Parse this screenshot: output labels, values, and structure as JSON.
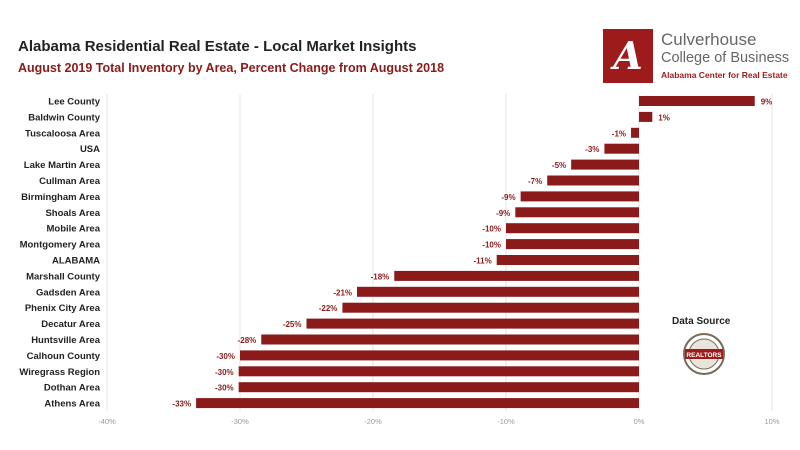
{
  "title": "Alabama Residential Real Estate - Local Market Insights",
  "subtitle": "August 2019 Total Inventory by Area, Percent Change from August 2018",
  "logo": {
    "letter": "A",
    "line1": "Culverhouse",
    "line2": "College of Business",
    "line3": "Alabama Center for Real Estate"
  },
  "data_source_label": "Data Source",
  "seal_text": "REALTORS",
  "colors": {
    "bar": "#8b1a1a",
    "label": "#8b1a1a",
    "grid": "#e6e6e6",
    "axis": "#999999"
  },
  "chart_data": {
    "type": "bar",
    "orientation": "horizontal",
    "title": "Alabama Residential Real Estate - Local Market Insights",
    "subtitle": "August 2019 Total Inventory by Area, Percent Change from August 2018",
    "categories": [
      "Lee County",
      "Baldwin County",
      "Tuscaloosa Area",
      "USA",
      "Lake Martin Area",
      "Cullman Area",
      "Birmingham Area",
      "Shoals Area",
      "Mobile Area",
      "Montgomery Area",
      "ALABAMA",
      "Marshall County",
      "Gadsden Area",
      "Phenix City Area",
      "Decatur Area",
      "Huntsville Area",
      "Calhoun County",
      "Wiregrass Region",
      "Dothan Area",
      "Athens Area"
    ],
    "values": [
      8.7,
      1.0,
      -0.6,
      -2.6,
      -5.1,
      -6.9,
      -8.9,
      -9.3,
      -10.0,
      -10.0,
      -10.7,
      -18.4,
      -21.2,
      -22.3,
      -25.0,
      -28.4,
      -30.0,
      -30.1,
      -30.1,
      -33.3
    ],
    "data_labels": [
      "9%",
      "1%",
      "-1%",
      "-3%",
      "-5%",
      "-7%",
      "-9%",
      "-9%",
      "-10%",
      "-10%",
      "-11%",
      "-18%",
      "-21%",
      "-22%",
      "-25%",
      "-28%",
      "-30%",
      "-30%",
      "-30%",
      "-33%"
    ],
    "xlim": [
      -40,
      10
    ],
    "x_ticks": [
      -40,
      -30,
      -20,
      -10,
      0,
      10
    ],
    "x_tick_labels": [
      "-40%",
      "-30%",
      "-20%",
      "-10%",
      "0%",
      "10%"
    ],
    "grid": true,
    "legend": "none"
  }
}
